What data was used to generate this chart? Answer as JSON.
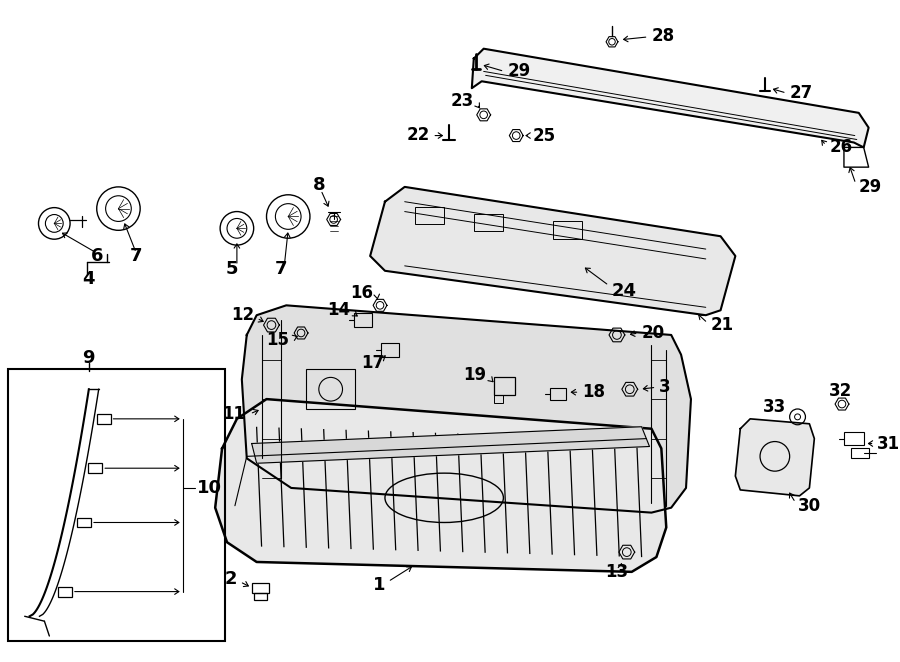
{
  "bg_color": "#ffffff",
  "line_color": "#000000",
  "text_color": "#000000",
  "figsize": [
    9.0,
    6.62
  ],
  "dpi": 100
}
